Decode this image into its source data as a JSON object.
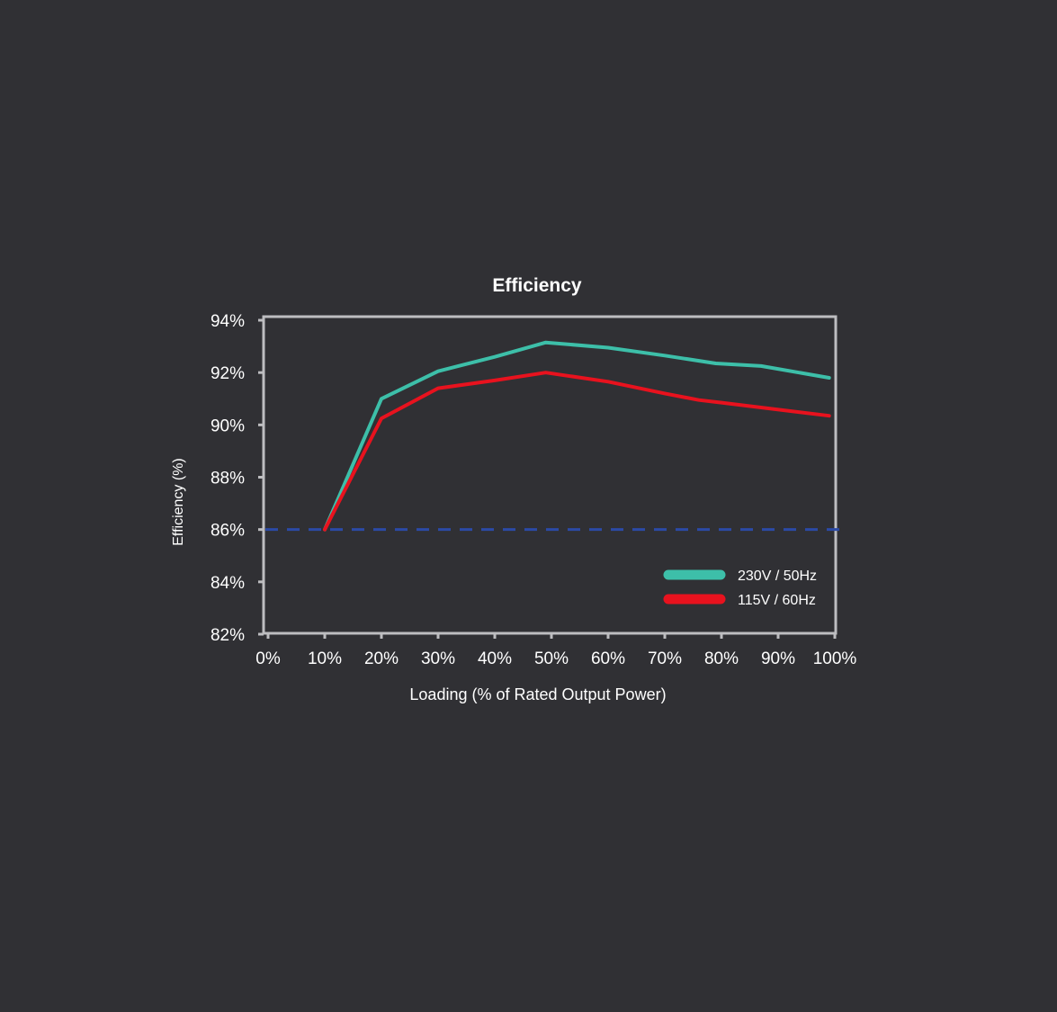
{
  "chart_data": {
    "type": "line",
    "title": "Efficiency",
    "xlabel": "Loading (% of Rated Output Power)",
    "ylabel": "Efficiency (%)",
    "x_ticks": [
      "0%",
      "10%",
      "20%",
      "30%",
      "40%",
      "50%",
      "60%",
      "70%",
      "80%",
      "90%",
      "100%"
    ],
    "y_ticks": [
      "94%",
      "92%",
      "90%",
      "88%",
      "86%",
      "84%",
      "82%"
    ],
    "xlim": [
      0,
      100
    ],
    "ylim": [
      82,
      94
    ],
    "grid": false,
    "legend_position": "bottom-right",
    "reference_line": {
      "y": 86,
      "style": "dashed",
      "color": "#2b4aa6"
    },
    "series": [
      {
        "name": "230V / 50Hz",
        "color": "#3dbfa9",
        "x": [
          10,
          20,
          30,
          40,
          49,
          60,
          70,
          79,
          87,
          99
        ],
        "y": [
          86.0,
          91.0,
          92.05,
          92.6,
          93.15,
          92.95,
          92.65,
          92.35,
          92.25,
          91.8
        ]
      },
      {
        "name": "115V / 60Hz",
        "color": "#e8121e",
        "x": [
          10,
          20,
          30,
          40,
          49,
          60,
          70,
          76,
          80,
          99
        ],
        "y": [
          86.0,
          90.25,
          91.4,
          91.7,
          92.0,
          91.65,
          91.2,
          90.95,
          90.85,
          90.35
        ]
      }
    ]
  }
}
